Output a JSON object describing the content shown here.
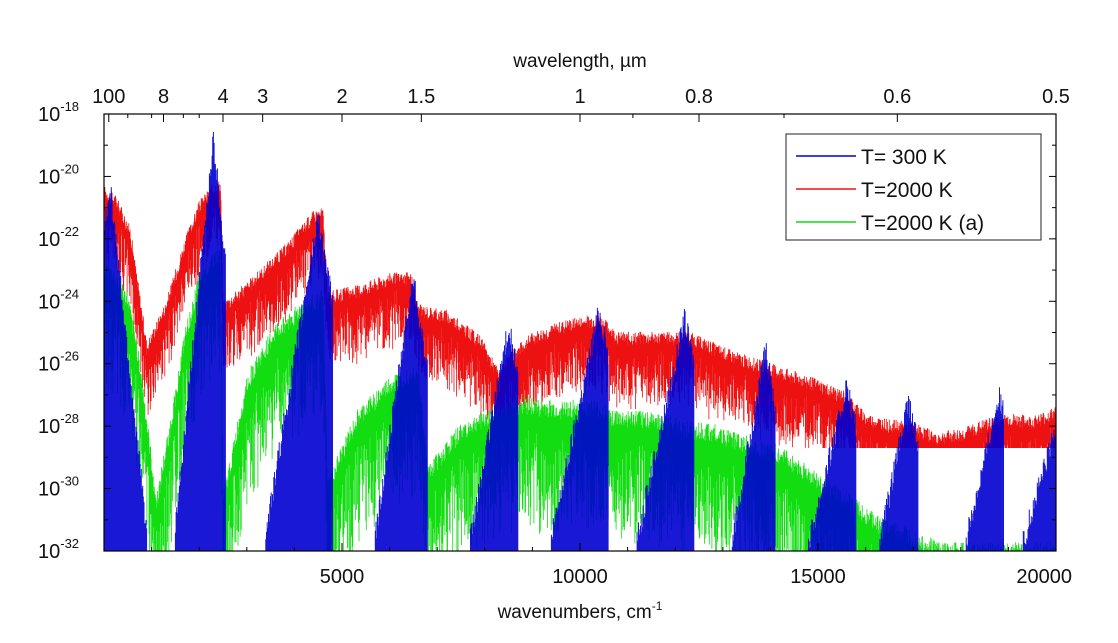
{
  "chart_data": {
    "type": "line",
    "title": "",
    "xlabel": "wavenumbers, cm",
    "xlabel_sup": "-1",
    "top_xlabel": "wavelength, µm",
    "ylabel": "",
    "xlim": [
      0,
      20000
    ],
    "ylim_log10": [
      -32,
      -18
    ],
    "yscale": "log",
    "x_ticks": [
      5000,
      10000,
      15000,
      20000
    ],
    "x_tick_labels": [
      "5000",
      "10000",
      "15000",
      "20000"
    ],
    "y_ticks": [
      {
        "exp": -18,
        "base": "10",
        "sup": "-18"
      },
      {
        "exp": -20,
        "base": "10",
        "sup": "-20"
      },
      {
        "exp": -22,
        "base": "10",
        "sup": "-22"
      },
      {
        "exp": -24,
        "base": "10",
        "sup": "-24"
      },
      {
        "exp": -26,
        "base": "10",
        "sup": "-26"
      },
      {
        "exp": -28,
        "base": "10",
        "sup": "-28"
      },
      {
        "exp": -30,
        "base": "10",
        "sup": "-30"
      },
      {
        "exp": -32,
        "base": "10",
        "sup": "-32"
      }
    ],
    "top_ticks": [
      {
        "label": "100",
        "wavelength_um": 100
      },
      {
        "label": "8",
        "wavelength_um": 8
      },
      {
        "label": "4",
        "wavelength_um": 4
      },
      {
        "label": "3",
        "wavelength_um": 3
      },
      {
        "label": "2",
        "wavelength_um": 2
      },
      {
        "label": "1.5",
        "wavelength_um": 1.5
      },
      {
        "label": "1",
        "wavelength_um": 1
      },
      {
        "label": "0.8",
        "wavelength_um": 0.8
      },
      {
        "label": "0.6",
        "wavelength_um": 0.6
      },
      {
        "label": "0.5",
        "wavelength_um": 0.5
      }
    ],
    "legend": {
      "placement": "top-right"
    },
    "series": [
      {
        "name": "T= 300 K",
        "color": "#0000d0",
        "bands": [
          {
            "x0": 0,
            "x1": 900,
            "peak": -20.2,
            "center": 120,
            "floor": -32
          },
          {
            "x0": 1500,
            "x1": 2550,
            "peak": -18.8,
            "center": 2300,
            "floor": -32
          },
          {
            "x0": 3400,
            "x1": 4800,
            "peak": -21.3,
            "center": 4500,
            "floor": -32
          },
          {
            "x0": 5700,
            "x1": 6800,
            "peak": -23.2,
            "center": 6500,
            "floor": -32
          },
          {
            "x0": 7700,
            "x1": 8700,
            "peak": -24.8,
            "center": 8500,
            "floor": -32
          },
          {
            "x0": 9400,
            "x1": 10600,
            "peak": -24.3,
            "center": 10400,
            "floor": -32
          },
          {
            "x0": 11200,
            "x1": 12400,
            "peak": -24.6,
            "center": 12200,
            "floor": -32
          },
          {
            "x0": 13200,
            "x1": 14100,
            "peak": -25.6,
            "center": 13900,
            "floor": -32
          },
          {
            "x0": 14800,
            "x1": 15800,
            "peak": -26.8,
            "center": 15600,
            "floor": -32
          },
          {
            "x0": 16300,
            "x1": 17100,
            "peak": -27.2,
            "center": 16900,
            "floor": -32
          },
          {
            "x0": 18100,
            "x1": 18900,
            "peak": -27.0,
            "center": 18800,
            "floor": -32
          },
          {
            "x0": 19300,
            "x1": 20000,
            "peak": -28.0,
            "center": 20000,
            "floor": -32
          }
        ]
      },
      {
        "name": "T=2000 K",
        "color": "#ee1111",
        "envelope": [
          [
            0,
            -20.5
          ],
          [
            250,
            -20.8
          ],
          [
            550,
            -21.8
          ],
          [
            900,
            -25.5
          ],
          [
            1300,
            -24.2
          ],
          [
            1700,
            -22.2
          ],
          [
            2000,
            -21.0
          ],
          [
            2300,
            -20.4
          ],
          [
            2450,
            -20.3
          ],
          [
            2500,
            -24.2
          ],
          [
            3000,
            -23.6
          ],
          [
            3800,
            -22.4
          ],
          [
            4400,
            -21.3
          ],
          [
            4600,
            -21.2
          ],
          [
            4700,
            -23.9
          ],
          [
            5300,
            -23.7
          ],
          [
            6000,
            -23.3
          ],
          [
            6450,
            -23.3
          ],
          [
            6600,
            -24.3
          ],
          [
            7200,
            -24.5
          ],
          [
            7900,
            -25.3
          ],
          [
            8300,
            -26.4
          ],
          [
            8550,
            -25.8
          ],
          [
            9000,
            -25.2
          ],
          [
            9700,
            -24.8
          ],
          [
            10400,
            -24.6
          ],
          [
            10800,
            -25.2
          ],
          [
            11600,
            -25.2
          ],
          [
            12300,
            -25.2
          ],
          [
            12600,
            -25.4
          ],
          [
            13200,
            -25.8
          ],
          [
            14000,
            -26.2
          ],
          [
            14800,
            -26.6
          ],
          [
            15600,
            -27.1
          ],
          [
            16000,
            -27.8
          ],
          [
            16500,
            -28.0
          ],
          [
            17000,
            -28.1
          ],
          [
            17500,
            -28.4
          ],
          [
            18000,
            -28.3
          ],
          [
            18500,
            -28.0
          ],
          [
            19000,
            -27.8
          ],
          [
            19500,
            -27.9
          ],
          [
            20000,
            -27.6
          ]
        ],
        "floor": -28.7
      },
      {
        "name": "T=2000 K (a)",
        "color": "#11dd11",
        "envelope": [
          [
            0,
            -22.9
          ],
          [
            250,
            -23.3
          ],
          [
            500,
            -24.0
          ],
          [
            750,
            -26.0
          ],
          [
            1100,
            -30.5
          ],
          [
            1400,
            -28.0
          ],
          [
            1700,
            -25.2
          ],
          [
            2000,
            -23.4
          ],
          [
            2300,
            -22.6
          ],
          [
            2450,
            -22.6
          ],
          [
            2500,
            -30.5
          ],
          [
            3000,
            -26.6
          ],
          [
            3600,
            -25.0
          ],
          [
            4200,
            -24.2
          ],
          [
            4600,
            -23.9
          ],
          [
            4700,
            -30.0
          ],
          [
            5300,
            -27.8
          ],
          [
            6000,
            -26.7
          ],
          [
            6600,
            -26.2
          ],
          [
            6800,
            -29.5
          ],
          [
            7500,
            -28.2
          ],
          [
            8200,
            -27.6
          ],
          [
            8800,
            -27.3
          ],
          [
            9500,
            -27.5
          ],
          [
            10200,
            -27.4
          ],
          [
            10800,
            -27.8
          ],
          [
            11600,
            -27.8
          ],
          [
            12200,
            -28.1
          ],
          [
            12800,
            -28.2
          ],
          [
            13500,
            -28.6
          ],
          [
            14200,
            -28.9
          ],
          [
            15000,
            -29.8
          ],
          [
            15600,
            -30.4
          ],
          [
            16300,
            -31.2
          ],
          [
            17000,
            -31.6
          ],
          [
            17600,
            -32.0
          ],
          [
            20000,
            -32.0
          ]
        ],
        "floor": -32
      }
    ]
  }
}
